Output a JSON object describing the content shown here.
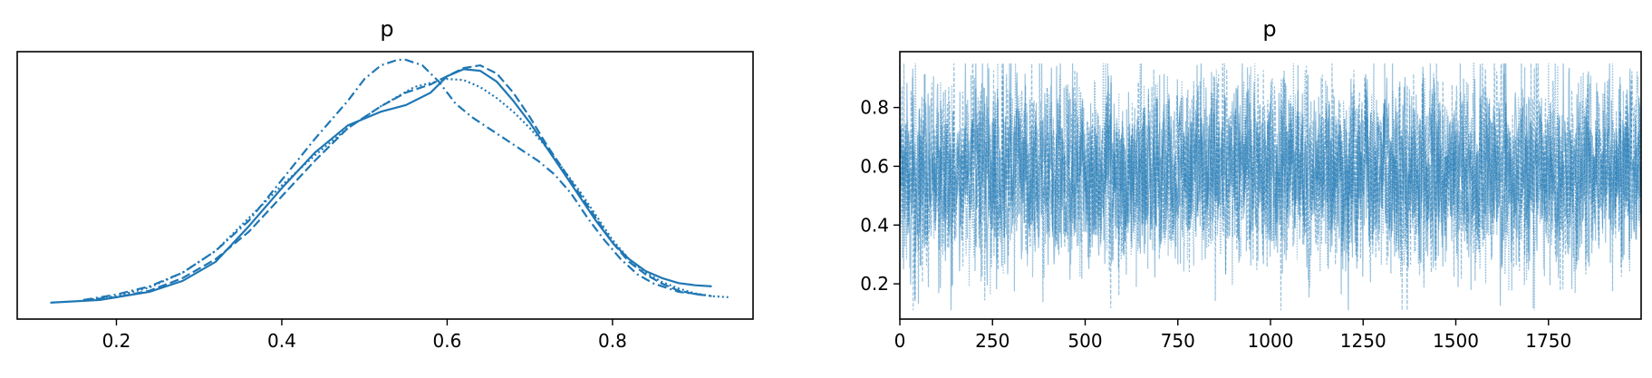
{
  "chart_data": [
    {
      "type": "line",
      "title": "p",
      "xlabel": "",
      "ylabel": "",
      "xlim": [
        0.08,
        0.97
      ],
      "ylim": [
        -0.3,
        4.6
      ],
      "xticks": [
        "0.2",
        "0.4",
        "0.6",
        "0.8"
      ],
      "yticks": [],
      "grid": false,
      "color": "#1f77b4",
      "series": [
        {
          "style": "solid",
          "x": [
            0.12,
            0.18,
            0.24,
            0.28,
            0.32,
            0.36,
            0.4,
            0.44,
            0.48,
            0.52,
            0.55,
            0.58,
            0.6,
            0.62,
            0.64,
            0.66,
            0.68,
            0.7,
            0.72,
            0.74,
            0.76,
            0.78,
            0.8,
            0.82,
            0.84,
            0.86,
            0.88,
            0.9,
            0.92
          ],
          "y": [
            0.0,
            0.05,
            0.2,
            0.4,
            0.75,
            1.4,
            2.1,
            2.75,
            3.25,
            3.5,
            3.62,
            3.85,
            4.15,
            4.28,
            4.25,
            4.05,
            3.7,
            3.3,
            2.85,
            2.4,
            1.95,
            1.5,
            1.1,
            0.8,
            0.58,
            0.45,
            0.36,
            0.32,
            0.3
          ]
        },
        {
          "style": "dashed",
          "x": [
            0.16,
            0.2,
            0.24,
            0.28,
            0.32,
            0.36,
            0.4,
            0.44,
            0.48,
            0.52,
            0.55,
            0.58,
            0.6,
            0.62,
            0.64,
            0.66,
            0.68,
            0.7,
            0.72,
            0.74,
            0.76,
            0.78,
            0.8,
            0.82,
            0.84,
            0.86,
            0.88,
            0.9,
            0.92
          ],
          "y": [
            0.05,
            0.1,
            0.22,
            0.45,
            0.8,
            1.3,
            1.95,
            2.6,
            3.2,
            3.6,
            3.85,
            4.0,
            4.15,
            4.3,
            4.35,
            4.2,
            3.85,
            3.4,
            2.9,
            2.45,
            2.0,
            1.55,
            1.1,
            0.75,
            0.52,
            0.35,
            0.22,
            0.16,
            0.12
          ]
        },
        {
          "style": "dashdot",
          "x": [
            0.16,
            0.2,
            0.24,
            0.28,
            0.32,
            0.36,
            0.4,
            0.44,
            0.48,
            0.5,
            0.52,
            0.54,
            0.55,
            0.57,
            0.59,
            0.61,
            0.63,
            0.65,
            0.67,
            0.69,
            0.71,
            0.73,
            0.75,
            0.77,
            0.79,
            0.81,
            0.83,
            0.85,
            0.88,
            0.91
          ],
          "y": [
            0.05,
            0.15,
            0.3,
            0.55,
            0.95,
            1.5,
            2.25,
            3.0,
            3.7,
            4.1,
            4.35,
            4.45,
            4.45,
            4.35,
            4.05,
            3.65,
            3.4,
            3.2,
            3.0,
            2.8,
            2.6,
            2.35,
            2.0,
            1.55,
            1.15,
            0.8,
            0.52,
            0.35,
            0.2,
            0.14
          ]
        },
        {
          "style": "dotted",
          "x": [
            0.16,
            0.2,
            0.24,
            0.28,
            0.32,
            0.36,
            0.4,
            0.44,
            0.48,
            0.52,
            0.56,
            0.6,
            0.62,
            0.64,
            0.66,
            0.68,
            0.7,
            0.72,
            0.74,
            0.76,
            0.78,
            0.8,
            0.82,
            0.84,
            0.86,
            0.88,
            0.9,
            0.92,
            0.94
          ],
          "y": [
            0.04,
            0.12,
            0.28,
            0.55,
            0.95,
            1.55,
            2.15,
            2.7,
            3.2,
            3.6,
            3.95,
            4.1,
            4.08,
            3.95,
            3.75,
            3.5,
            3.2,
            2.85,
            2.45,
            2.05,
            1.6,
            1.15,
            0.8,
            0.55,
            0.38,
            0.26,
            0.17,
            0.12,
            0.1
          ]
        }
      ]
    },
    {
      "type": "line",
      "title": "p",
      "xlabel": "",
      "ylabel": "",
      "xlim": [
        0,
        2000
      ],
      "ylim": [
        0.08,
        0.99
      ],
      "xticks": [
        "0",
        "250",
        "500",
        "750",
        "1000",
        "1250",
        "1500",
        "1750"
      ],
      "yticks": [
        "0.2",
        "0.4",
        "0.6",
        "0.8"
      ],
      "grid": false,
      "color": "#1f77b4",
      "n_draws": 2000,
      "n_chains": 4,
      "chain_styles": [
        "solid",
        "dashed",
        "dashdot",
        "dotted"
      ],
      "approx_mean": 0.58,
      "approx_min": 0.11,
      "approx_max": 0.95
    }
  ]
}
